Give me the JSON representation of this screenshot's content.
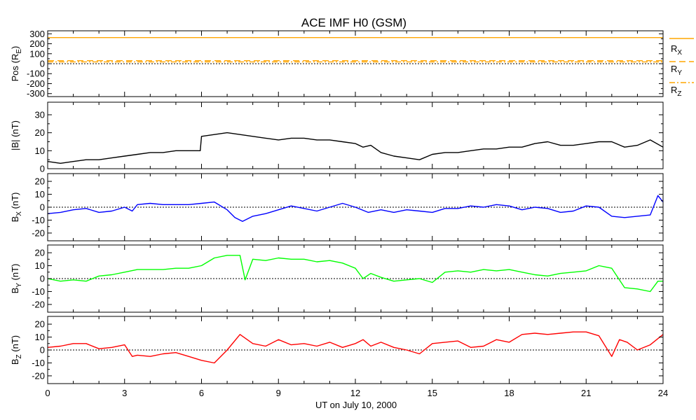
{
  "title": "ACE IMF H0 (GSM)",
  "colors": {
    "rx": "#ffa500",
    "ry": "#ffa500",
    "rz": "#ffa500",
    "bmag": "#000000",
    "bx": "#0000ff",
    "by": "#00ff00",
    "bz": "#ff0000"
  },
  "chart_data": {
    "type": "line",
    "title": "ACE IMF H0 (GSM)",
    "xlabel": "UT on July 10, 2000",
    "xlim": [
      0,
      24
    ],
    "xticks": [
      "0",
      "3",
      "6",
      "9",
      "12",
      "15",
      "18",
      "21",
      "24"
    ],
    "panels": [
      {
        "ylabel": "Pos (RE)",
        "ylabel_main": "Pos (R",
        "ylabel_sub": "E",
        "ylabel_end": ")",
        "ylim": [
          -330,
          330
        ],
        "yticks": [
          -300,
          -200,
          -100,
          0,
          100,
          200,
          300
        ],
        "ytick_labels": [
          "-300",
          "-200",
          "-100",
          "0",
          "100",
          "200",
          "300"
        ],
        "zero_line": true,
        "series": [
          {
            "name": "RX",
            "style": "solid",
            "x": [
              0,
              24
            ],
            "y": [
              262,
              262
            ]
          },
          {
            "name": "RY",
            "style": "long-dash",
            "x": [
              0,
              24
            ],
            "y": [
              30,
              30
            ]
          },
          {
            "name": "RZ",
            "style": "dash-dot",
            "x": [
              0,
              24
            ],
            "y": [
              18,
              18
            ]
          }
        ],
        "legend": [
          {
            "main": "R",
            "sub": "X"
          },
          {
            "main": "R",
            "sub": "Y"
          },
          {
            "main": "R",
            "sub": "Z"
          }
        ]
      },
      {
        "ylabel": "|B| (nT)",
        "ylim": [
          0,
          37
        ],
        "yticks": [
          0,
          10,
          20,
          30
        ],
        "ytick_labels": [
          "0",
          "10",
          "20",
          "30"
        ],
        "zero_line": false,
        "series": [
          {
            "name": "|B|",
            "x": [
              0,
              0.5,
              1.0,
              1.5,
              2.0,
              2.5,
              3.0,
              3.5,
              4.0,
              4.5,
              5.0,
              5.5,
              5.95,
              6.0,
              6.5,
              7.0,
              7.5,
              8.0,
              8.5,
              9.0,
              9.5,
              10.0,
              10.5,
              11.0,
              11.5,
              12.0,
              12.3,
              12.6,
              13.0,
              13.5,
              14.0,
              14.5,
              15.0,
              15.5,
              16.0,
              16.5,
              17.0,
              17.5,
              18.0,
              18.5,
              19.0,
              19.5,
              20.0,
              20.5,
              21.0,
              21.5,
              22.0,
              22.5,
              23.0,
              23.5,
              24.0
            ],
            "y": [
              4,
              3,
              4,
              5,
              5,
              6,
              7,
              8,
              9,
              9,
              10,
              10,
              10,
              18,
              19,
              20,
              19,
              18,
              17,
              16,
              17,
              17,
              16,
              16,
              15,
              14,
              12,
              13,
              9,
              7,
              6,
              5,
              8,
              9,
              9,
              10,
              11,
              11,
              12,
              12,
              14,
              15,
              13,
              13,
              14,
              15,
              15,
              12,
              13,
              16,
              12
            ]
          }
        ]
      },
      {
        "ylabel": "BX (nT)",
        "ylabel_main": "B",
        "ylabel_sub": "X",
        "ylabel_end": " (nT)",
        "ylim": [
          -26,
          26
        ],
        "yticks": [
          -20,
          -10,
          0,
          10,
          20
        ],
        "ytick_labels": [
          "-20",
          "-10",
          "0",
          "10",
          "20"
        ],
        "zero_line": true,
        "series": [
          {
            "name": "BX",
            "x": [
              0,
              0.5,
              1.0,
              1.5,
              2.0,
              2.5,
              3.0,
              3.3,
              3.5,
              4.0,
              4.5,
              5.0,
              5.5,
              6.0,
              6.5,
              7.0,
              7.3,
              7.6,
              8.0,
              8.5,
              9.0,
              9.5,
              10.0,
              10.5,
              11.0,
              11.5,
              12.0,
              12.5,
              13.0,
              13.5,
              14.0,
              14.5,
              15.0,
              15.5,
              16.0,
              16.5,
              17.0,
              17.5,
              18.0,
              18.5,
              19.0,
              19.5,
              20.0,
              20.5,
              21.0,
              21.5,
              22.0,
              22.5,
              23.0,
              23.5,
              23.8,
              24.0
            ],
            "y": [
              -5,
              -4,
              -2,
              -1,
              -4,
              -3,
              0,
              -3,
              2,
              3,
              2,
              2,
              2,
              3,
              4,
              -2,
              -8,
              -11,
              -7,
              -5,
              -2,
              1,
              -1,
              -3,
              0,
              3,
              0,
              -4,
              -2,
              -4,
              -2,
              -3,
              -4,
              -1,
              -1,
              1,
              0,
              2,
              1,
              -2,
              0,
              -1,
              -4,
              -3,
              1,
              0,
              -7,
              -8,
              -7,
              -6,
              9,
              4
            ]
          }
        ]
      },
      {
        "ylabel": "BY (nT)",
        "ylabel_main": "B",
        "ylabel_sub": "Y",
        "ylabel_end": " (nT)",
        "ylim": [
          -26,
          26
        ],
        "yticks": [
          -20,
          -10,
          0,
          10,
          20
        ],
        "ytick_labels": [
          "-20",
          "-10",
          "0",
          "10",
          "20"
        ],
        "zero_line": true,
        "series": [
          {
            "name": "BY",
            "x": [
              0,
              0.5,
              1.0,
              1.5,
              2.0,
              2.5,
              3.0,
              3.5,
              4.0,
              4.5,
              5.0,
              5.5,
              6.0,
              6.5,
              7.0,
              7.5,
              7.7,
              8.0,
              8.5,
              9.0,
              9.5,
              10.0,
              10.5,
              11.0,
              11.5,
              12.0,
              12.3,
              12.6,
              13.0,
              13.5,
              14.0,
              14.5,
              15.0,
              15.5,
              16.0,
              16.5,
              17.0,
              17.5,
              18.0,
              18.5,
              19.0,
              19.5,
              20.0,
              20.5,
              21.0,
              21.5,
              22.0,
              22.5,
              23.0,
              23.5,
              23.8,
              24.0
            ],
            "y": [
              0,
              -2,
              -1,
              -2,
              2,
              3,
              5,
              7,
              7,
              7,
              8,
              8,
              10,
              16,
              18,
              18,
              -1,
              15,
              14,
              16,
              15,
              15,
              13,
              14,
              12,
              8,
              0,
              4,
              1,
              -2,
              -1,
              0,
              -3,
              5,
              6,
              5,
              7,
              6,
              7,
              5,
              3,
              2,
              4,
              5,
              6,
              10,
              8,
              -7,
              -8,
              -10,
              -2,
              -2
            ]
          }
        ]
      },
      {
        "ylabel": "BZ (nT)",
        "ylabel_main": "B",
        "ylabel_sub": "Z",
        "ylabel_end": " (nT)",
        "ylim": [
          -26,
          26
        ],
        "yticks": [
          -20,
          -10,
          0,
          10,
          20
        ],
        "ytick_labels": [
          "-20",
          "-10",
          "0",
          "10",
          "20"
        ],
        "zero_line": true,
        "series": [
          {
            "name": "BZ",
            "x": [
              0,
              0.5,
              1.0,
              1.5,
              2.0,
              2.5,
              3.0,
              3.3,
              3.5,
              4.0,
              4.5,
              5.0,
              5.5,
              6.0,
              6.5,
              7.0,
              7.5,
              8.0,
              8.5,
              9.0,
              9.5,
              10.0,
              10.5,
              11.0,
              11.5,
              12.0,
              12.3,
              12.6,
              13.0,
              13.5,
              14.0,
              14.5,
              15.0,
              15.5,
              16.0,
              16.5,
              17.0,
              17.5,
              18.0,
              18.5,
              19.0,
              19.5,
              20.0,
              20.5,
              21.0,
              21.5,
              22.0,
              22.3,
              22.6,
              23.0,
              23.5,
              24.0
            ],
            "y": [
              2,
              3,
              5,
              5,
              1,
              2,
              4,
              -5,
              -4,
              -5,
              -3,
              -2,
              -5,
              -8,
              -10,
              0,
              12,
              5,
              3,
              8,
              4,
              5,
              3,
              6,
              2,
              5,
              8,
              3,
              6,
              2,
              0,
              -3,
              5,
              6,
              7,
              2,
              3,
              8,
              6,
              12,
              13,
              12,
              13,
              14,
              14,
              11,
              -5,
              8,
              6,
              0,
              4,
              12
            ]
          }
        ]
      }
    ]
  }
}
